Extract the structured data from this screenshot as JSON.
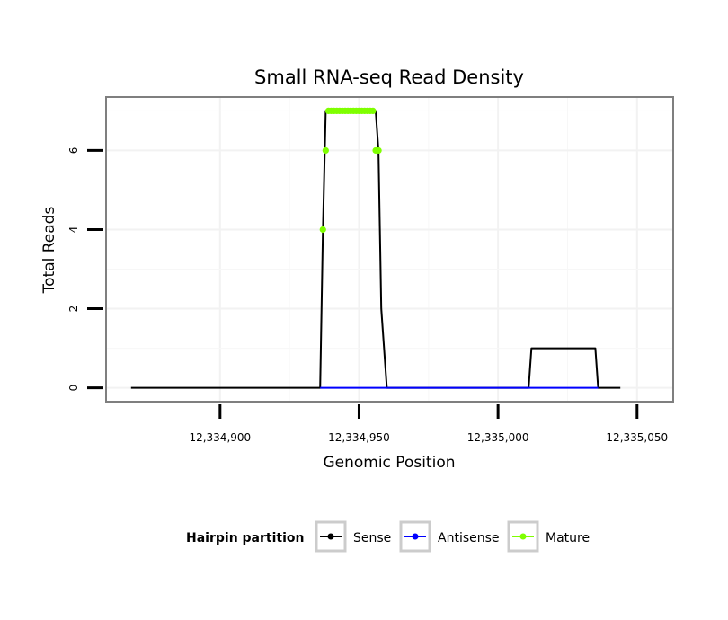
{
  "chart_data": {
    "type": "line",
    "title": "Small RNA-seq Read Density",
    "xlabel": "Genomic Position",
    "ylabel": "Total Reads",
    "xlim": [
      12334859,
      12335063
    ],
    "ylim": [
      -0.35,
      7.35
    ],
    "x_ticks": [
      12334900,
      12334950,
      12335000,
      12335050
    ],
    "x_tick_labels": [
      "12,334,900",
      "12,334,950",
      "12,335,000",
      "12,335,050"
    ],
    "y_ticks": [
      0,
      2,
      4,
      6
    ],
    "y_tick_labels": [
      "0",
      "2",
      "4",
      "6"
    ],
    "grid": true,
    "legend": {
      "title": "Hairpin partition",
      "position": "bottom",
      "items": [
        {
          "name": "Sense",
          "color": "#000000"
        },
        {
          "name": "Antisense",
          "color": "#0000ff"
        },
        {
          "name": "Mature",
          "color": "#7fff00"
        }
      ]
    },
    "series": [
      {
        "name": "Sense",
        "color": "#000000",
        "style": "line",
        "x": [
          12334868,
          12334915,
          12334936,
          12334937,
          12334938,
          12334956,
          12334957,
          12334958,
          12334960,
          12335011,
          12335012,
          12335035,
          12335036,
          12335044
        ],
        "y": [
          0,
          0,
          0,
          4,
          7,
          7,
          6,
          2,
          0,
          0,
          1,
          1,
          0,
          0
        ]
      },
      {
        "name": "Antisense",
        "color": "#0000ff",
        "style": "line",
        "x": [
          12334936,
          12334960,
          12335011,
          12335036
        ],
        "y": [
          0,
          0,
          0,
          0
        ]
      },
      {
        "name": "Mature",
        "color": "#7fff00",
        "style": "points",
        "x": [
          12334937,
          12334938,
          12334939,
          12334940,
          12334941,
          12334942,
          12334943,
          12334944,
          12334945,
          12334946,
          12334947,
          12334948,
          12334949,
          12334950,
          12334951,
          12334952,
          12334953,
          12334954,
          12334955,
          12334956,
          12334957
        ],
        "y": [
          4,
          6,
          7,
          7,
          7,
          7,
          7,
          7,
          7,
          7,
          7,
          7,
          7,
          7,
          7,
          7,
          7,
          7,
          7,
          6,
          6
        ]
      }
    ]
  }
}
